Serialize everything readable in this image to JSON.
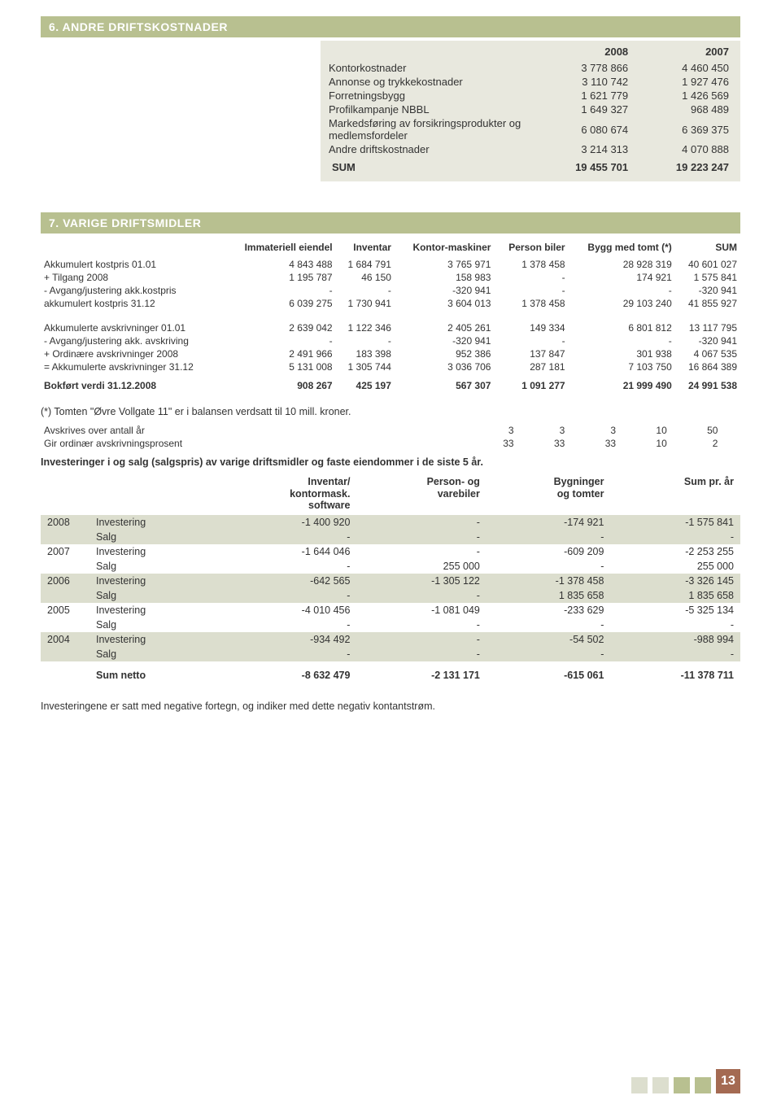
{
  "section6": {
    "title": "6. ANDRE DRIFTSKOSTNADER",
    "head": [
      "2008",
      "2007"
    ],
    "rows": [
      {
        "label": "Kontorkostnader",
        "v1": "3 778 866",
        "v2": "4 460 450"
      },
      {
        "label": "Annonse og trykkekostnader",
        "v1": "3 110 742",
        "v2": "1 927 476"
      },
      {
        "label": "Forretningsbygg",
        "v1": "1 621 779",
        "v2": "1 426 569"
      },
      {
        "label": "Profilkampanje NBBL",
        "v1": "1 649 327",
        "v2": "968 489"
      },
      {
        "label": "Markedsføring av forsikringsprodukter og medlemsfordeler",
        "v1": "6 080 674",
        "v2": "6 369 375"
      },
      {
        "label": "Andre driftskostnader",
        "v1": "3 214 313",
        "v2": "4 070 888"
      }
    ],
    "sum": {
      "label": "SUM",
      "v1": "19 455 701",
      "v2": "19 223 247"
    }
  },
  "section7": {
    "title": "7. VARIGE DRIFTSMIDLER",
    "cols": [
      "Immateriell eiendel",
      "Inventar",
      "Kontor-maskiner",
      "Person biler",
      "Bygg med tomt (*)",
      "SUM"
    ],
    "block1": [
      {
        "label": "Akkumulert kostpris 01.01",
        "v": [
          "4 843 488",
          "1 684 791",
          "3 765 971",
          "1 378 458",
          "28 928 319",
          "40 601 027"
        ]
      },
      {
        "label": "+ Tilgang 2008",
        "v": [
          "1 195 787",
          "46 150",
          "158 983",
          "-",
          "174 921",
          "1 575 841"
        ]
      },
      {
        "label": "- Avgang/justering akk.kostpris",
        "v": [
          "-",
          "-",
          "-320 941",
          "-",
          "-",
          "-320 941"
        ]
      },
      {
        "label": "akkumulert kostpris  31.12",
        "v": [
          "6 039 275",
          "1 730 941",
          "3 604 013",
          "1 378 458",
          "29 103 240",
          "41 855 927"
        ]
      }
    ],
    "block2": [
      {
        "label": "Akkumulerte avskrivninger 01.01",
        "v": [
          "2 639 042",
          "1 122 346",
          "2 405 261",
          "149 334",
          "6 801 812",
          "13 117 795"
        ]
      },
      {
        "label": "- Avgang/justering akk. avskriving",
        "v": [
          "-",
          "-",
          "-320 941",
          "-",
          "-",
          "-320 941"
        ]
      },
      {
        "label": "+ Ordinære avskrivninger 2008",
        "v": [
          "2 491 966",
          "183 398",
          "952 386",
          "137 847",
          "301 938",
          "4 067 535"
        ]
      },
      {
        "label": "= Akkumulerte avskrivninger 31.12",
        "v": [
          "5 131 008",
          "1 305 744",
          "3 036 706",
          "287 181",
          "7 103 750",
          "16 864 389"
        ]
      }
    ],
    "bokfort": {
      "label": "Bokført verdi 31.12.2008",
      "v": [
        "908 267",
        "425 197",
        "567 307",
        "1 091 277",
        "21 999 490",
        "24 991 538"
      ]
    },
    "note1": "(*) Tomten \"Øvre Vollgate 11\" er i balansen verdsatt til 10 mill. kroner.",
    "block3": [
      {
        "label": "Avskrives over antall år",
        "v": [
          "3",
          "3",
          "3",
          "10",
          "50",
          ""
        ]
      },
      {
        "label": "Gir ordinær avskrivningsprosent",
        "v": [
          "33",
          "33",
          "33",
          "10",
          "2",
          ""
        ]
      }
    ],
    "subhead": "Investeringer i og salg (salgspris) av varige driftsmidler og faste eiendommer i de siste 5 år.",
    "t8cols": [
      "Inventar/\nkontormask.\nsoftware",
      "Person- og\nvarebiler",
      "Bygninger\nog tomter",
      "Sum pr. år"
    ],
    "years": [
      {
        "y": "2008",
        "band": true,
        "rows": [
          {
            "label": "Investering",
            "v": [
              "-1 400 920",
              "-",
              "-174 921",
              "-1 575 841"
            ]
          },
          {
            "label": "Salg",
            "v": [
              "-",
              "-",
              "-",
              "-"
            ]
          }
        ]
      },
      {
        "y": "2007",
        "band": false,
        "rows": [
          {
            "label": "Investering",
            "v": [
              "-1 644 046",
              "-",
              "-609 209",
              "-2 253 255"
            ]
          },
          {
            "label": "Salg",
            "v": [
              "-",
              "255 000",
              "-",
              "255 000"
            ]
          }
        ]
      },
      {
        "y": "2006",
        "band": true,
        "rows": [
          {
            "label": "Investering",
            "v": [
              "-642 565",
              "-1 305 122",
              "-1 378 458",
              "-3 326 145"
            ]
          },
          {
            "label": "Salg",
            "v": [
              "-",
              "-",
              "1 835 658",
              "1 835 658"
            ]
          }
        ]
      },
      {
        "y": "2005",
        "band": false,
        "rows": [
          {
            "label": "Investering",
            "v": [
              "-4 010 456",
              "-1 081 049",
              "-233 629",
              "-5 325 134"
            ]
          },
          {
            "label": "Salg",
            "v": [
              "-",
              "-",
              "-",
              "-"
            ]
          }
        ]
      },
      {
        "y": "2004",
        "band": true,
        "rows": [
          {
            "label": "Investering",
            "v": [
              "-934 492",
              "-",
              "-54 502",
              "-988 994"
            ]
          },
          {
            "label": "Salg",
            "v": [
              "-",
              "-",
              "-",
              "-"
            ]
          }
        ]
      }
    ],
    "sumnetto": {
      "label": "Sum netto",
      "v": [
        "-8 632 479",
        "-2 131 171",
        "-615 061",
        "-11 378 711"
      ]
    },
    "note2": "Investeringene er satt  med negative fortegn, og indiker med dette negativ kontantstrøm."
  },
  "pagenum": "13"
}
